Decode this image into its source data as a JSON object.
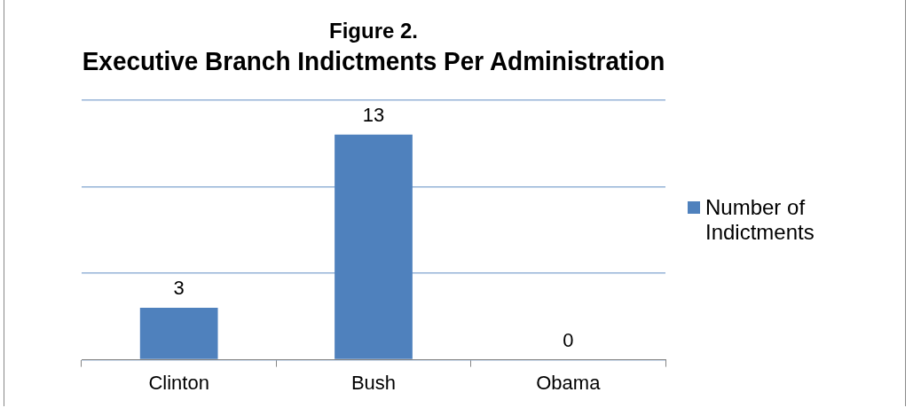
{
  "chart_data": {
    "type": "bar",
    "title": "Figure 2.",
    "subtitle": "Executive Branch Indictments Per Administration",
    "categories": [
      "Clinton",
      "Bush",
      "Obama"
    ],
    "series": [
      {
        "name": "Number of Indictments",
        "color": "#4f81bd",
        "values": [
          3,
          13,
          0
        ]
      }
    ],
    "ylim": [
      0,
      15
    ],
    "yticks": [
      {
        "value": 0,
        "label": null
      },
      {
        "value": 5,
        "label": null
      },
      {
        "value": 10,
        "label": null
      },
      {
        "value": 15,
        "label": null
      }
    ],
    "tick_labels": "x",
    "grid": "y",
    "legend": "right",
    "data_labels": true
  }
}
